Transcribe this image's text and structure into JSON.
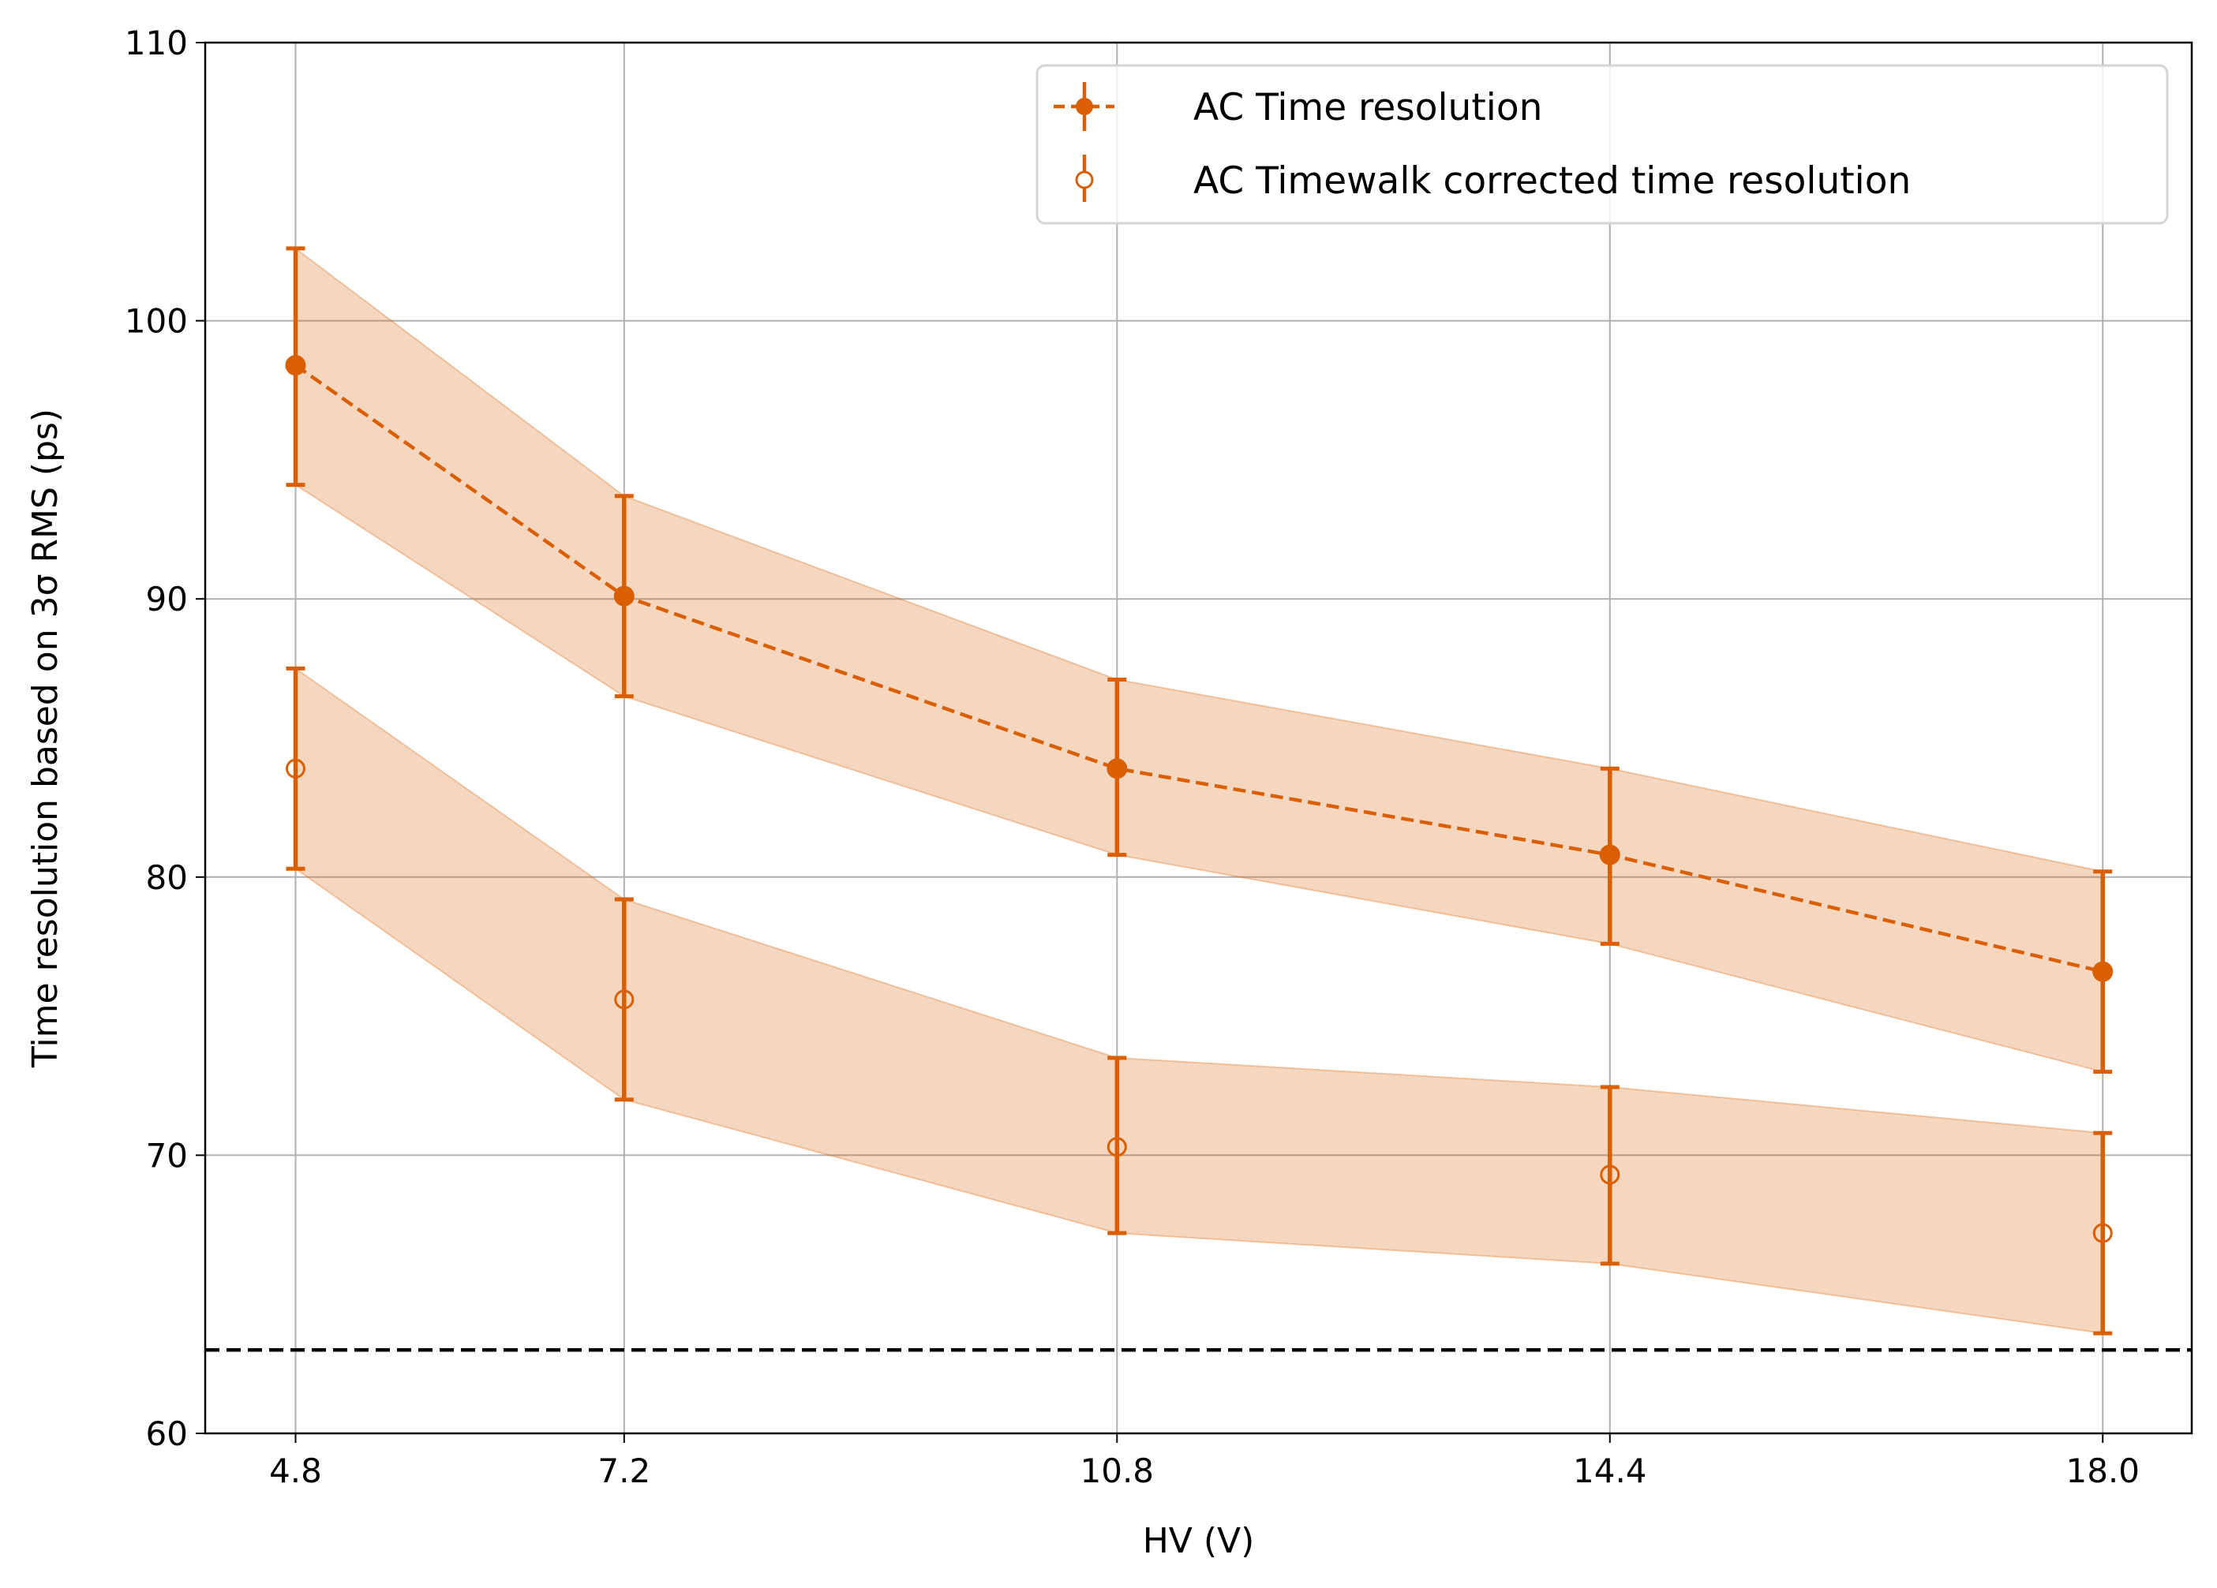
{
  "chart_data": {
    "type": "line",
    "title": "",
    "xlabel": "HV (V)",
    "ylabel": "Time resolution based on 3σ RMS (ps)",
    "x": [
      4.8,
      7.2,
      10.8,
      14.4,
      18.0
    ],
    "x_tick_labels": [
      "4.8",
      "7.2",
      "10.8",
      "14.4",
      "18.0"
    ],
    "xlim": [
      4.14,
      18.65
    ],
    "ylim": [
      60,
      110
    ],
    "y_ticks": [
      60,
      70,
      80,
      90,
      100,
      110
    ],
    "grid": true,
    "legend_position": "top-right",
    "series": [
      {
        "name": "AC Time resolution",
        "style": "dashed line, filled circle markers, error bars, shaded band",
        "color": "#d95f02",
        "y": [
          98.4,
          90.1,
          83.9,
          80.8,
          76.6
        ],
        "y_upper": [
          102.6,
          93.7,
          87.1,
          83.9,
          80.2
        ],
        "y_lower": [
          94.1,
          86.5,
          80.8,
          77.6,
          73.0
        ]
      },
      {
        "name": "AC Timewalk corrected time resolution",
        "style": "open circle markers, error bars, shaded band",
        "color": "#d95f02",
        "y": [
          83.9,
          75.6,
          70.3,
          69.3,
          67.2
        ],
        "y_upper": [
          87.5,
          79.2,
          73.5,
          72.45,
          70.8
        ],
        "y_lower": [
          80.3,
          72.0,
          67.2,
          66.1,
          63.6
        ]
      }
    ],
    "reference_line": {
      "y": 63.0,
      "color": "#000000",
      "style": "dashed"
    },
    "band_color": "#d95f02"
  }
}
